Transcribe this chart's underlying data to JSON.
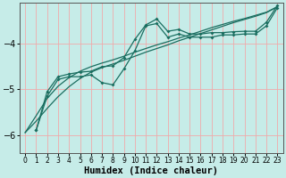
{
  "xlabel": "Humidex (Indice chaleur)",
  "background_color": "#c6ece8",
  "grid_color": "#f0aaaa",
  "line_color": "#1a6e60",
  "xlim": [
    -0.5,
    23.5
  ],
  "ylim": [
    -6.4,
    -3.1
  ],
  "yticks": [
    -6,
    -5,
    -4
  ],
  "xticks": [
    0,
    1,
    2,
    3,
    4,
    5,
    6,
    7,
    8,
    9,
    10,
    11,
    12,
    13,
    14,
    15,
    16,
    17,
    18,
    19,
    20,
    21,
    22,
    23
  ],
  "s1_y": [
    null,
    -5.9,
    -5.15,
    -4.78,
    -4.72,
    -4.72,
    -4.68,
    -4.85,
    -4.9,
    -4.55,
    -4.15,
    -3.6,
    -3.55,
    -3.85,
    -3.78,
    -3.85,
    -3.85,
    -3.85,
    -3.8,
    -3.8,
    -3.78,
    -3.78,
    -3.6,
    -3.2
  ],
  "s2_y": [
    null,
    -5.9,
    -5.05,
    -4.72,
    -4.66,
    -4.62,
    -4.6,
    -4.5,
    -4.48,
    -4.3,
    -3.9,
    -3.58,
    -3.45,
    -3.72,
    -3.68,
    -3.78,
    -3.78,
    -3.75,
    -3.75,
    -3.73,
    -3.72,
    -3.72,
    -3.52,
    -3.15
  ],
  "s3_y": [
    -5.95,
    -5.58,
    -5.2,
    -4.93,
    -4.74,
    -4.6,
    -4.5,
    -4.42,
    -4.35,
    -4.27,
    -4.18,
    -4.1,
    -4.02,
    -3.95,
    -3.87,
    -3.8,
    -3.72,
    -3.64,
    -3.57,
    -3.5,
    -3.44,
    -3.37,
    -3.3,
    -3.18
  ],
  "s4_y": [
    -5.95,
    -5.7,
    -5.42,
    -5.16,
    -4.94,
    -4.76,
    -4.62,
    -4.52,
    -4.44,
    -4.36,
    -4.27,
    -4.18,
    -4.1,
    -4.02,
    -3.93,
    -3.85,
    -3.77,
    -3.69,
    -3.61,
    -3.53,
    -3.46,
    -3.39,
    -3.31,
    -3.18
  ]
}
